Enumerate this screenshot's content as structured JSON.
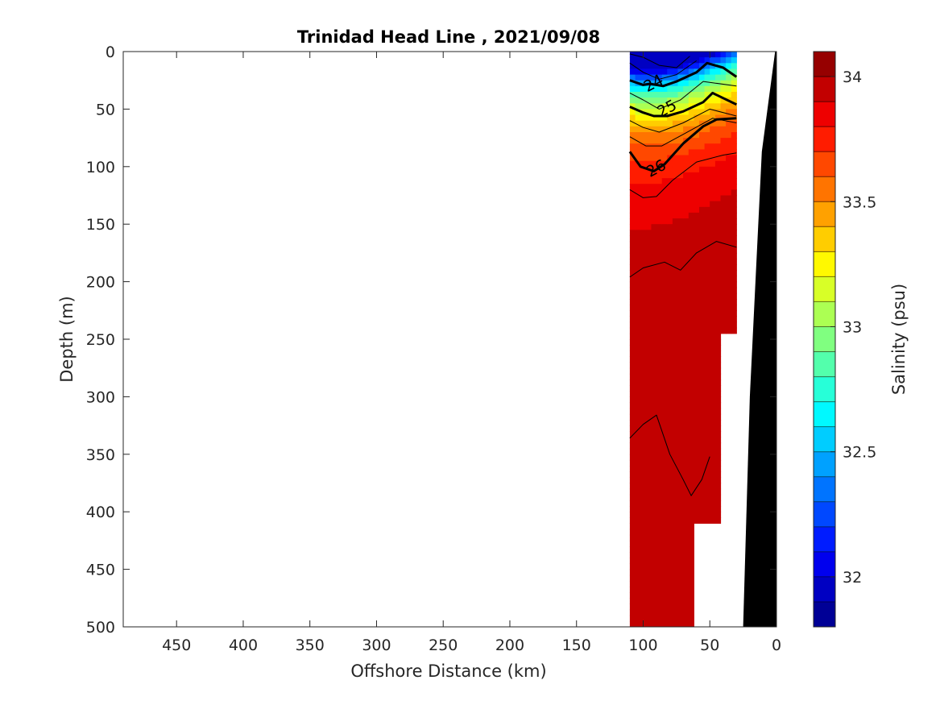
{
  "chart_data": {
    "type": "heatmap",
    "title": "Trinidad Head Line , 2021/09/08",
    "xlabel": "Offshore Distance (km)",
    "ylabel": "Depth (m)",
    "xlim": [
      490,
      0
    ],
    "ylim": [
      0,
      500
    ],
    "x_reversed": true,
    "y_reversed": true,
    "x_ticks": [
      450,
      400,
      350,
      300,
      250,
      200,
      150,
      100,
      50,
      0
    ],
    "y_ticks": [
      0,
      50,
      100,
      150,
      200,
      250,
      300,
      350,
      400,
      450,
      500
    ],
    "colorbar": {
      "label": "Salinity (psu)",
      "range": [
        31.8,
        34.1
      ],
      "ticks": [
        32,
        32.5,
        33,
        33.5,
        34
      ],
      "levels": 23
    },
    "contour_labels": [
      {
        "text": "24",
        "x": 92,
        "y": 28
      },
      {
        "text": "25",
        "x": 82,
        "y": 50
      },
      {
        "text": "26",
        "x": 90,
        "y": 102
      }
    ],
    "stations_x": [
      110,
      93,
      80,
      60,
      38,
      30
    ],
    "bathymetry": [
      [
        110,
        500
      ],
      [
        25,
        500
      ],
      [
        20,
        300
      ],
      [
        11,
        87
      ],
      [
        1,
        0
      ],
      [
        0,
        0
      ],
      [
        0,
        500
      ]
    ]
  }
}
